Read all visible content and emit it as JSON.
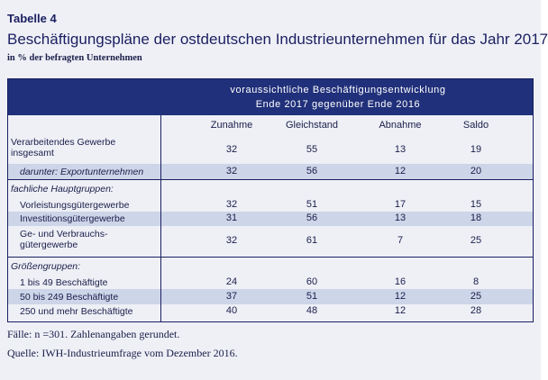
{
  "table_label": "Tabelle 4",
  "title": "Beschäftigungspläne der ostdeutschen Industrieunternehmen für das Jahr 2017",
  "subtitle": "in % der befragten Unternehmen",
  "header_band": {
    "line1": "voraussichtliche Beschäftigungsentwicklung",
    "line2": "Ende 2017 gegenüber Ende 2016"
  },
  "columns": [
    "Zunahme",
    "Gleichstand",
    "Abnahme",
    "Saldo"
  ],
  "rows": [
    {
      "label_lines": [
        "Verarbeitendes Gewerbe",
        "insgesamt"
      ],
      "values": [
        "32",
        "55",
        "13",
        "19"
      ]
    },
    {
      "label_lines": [
        "darunter: Exportunternehmen"
      ],
      "values": [
        "32",
        "56",
        "12",
        "20"
      ]
    },
    {
      "label_lines": [
        "fachliche Hauptgruppen:"
      ],
      "values": []
    },
    {
      "label_lines": [
        "Vorleistungsgütergewerbe"
      ],
      "values": [
        "32",
        "51",
        "17",
        "15"
      ]
    },
    {
      "label_lines": [
        "Investitionsgütergewerbe"
      ],
      "values": [
        "31",
        "56",
        "13",
        "18"
      ]
    },
    {
      "label_lines": [
        "Ge- und Verbrauchs-",
        "gütergewerbe"
      ],
      "values": [
        "32",
        "61",
        "7",
        "25"
      ]
    },
    {
      "label_lines": [
        "Größengruppen:"
      ],
      "values": []
    },
    {
      "label_lines": [
        "1 bis 49 Beschäftigte"
      ],
      "values": [
        "24",
        "60",
        "16",
        "8"
      ]
    },
    {
      "label_lines": [
        "50 bis 249 Beschäftigte"
      ],
      "values": [
        "37",
        "51",
        "12",
        "25"
      ]
    },
    {
      "label_lines": [
        "250 und mehr Beschäftigte"
      ],
      "values": [
        "40",
        "48",
        "12",
        "28"
      ]
    }
  ],
  "footnote": "Fälle: n =301. Zahlenangaben gerundet.",
  "source": "Quelle: IWH-Industrieumfrage vom Dezember 2016.",
  "colors": {
    "header_band": "#20307a",
    "row_shade": "#cdd5e8",
    "panel_background": "#eef0f6",
    "text": "#1b1d4a"
  }
}
